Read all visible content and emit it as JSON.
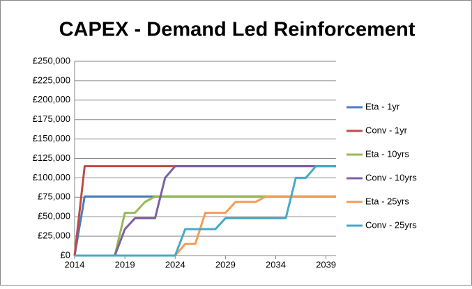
{
  "chart_data": {
    "type": "line",
    "title": "CAPEX - Demand Led Reinforcement",
    "x": [
      2014,
      2015,
      2016,
      2017,
      2018,
      2019,
      2020,
      2021,
      2022,
      2023,
      2024,
      2025,
      2026,
      2027,
      2028,
      2029,
      2030,
      2031,
      2032,
      2033,
      2034,
      2035,
      2036,
      2037,
      2038,
      2039,
      2040
    ],
    "xlim": [
      2014,
      2040
    ],
    "xticks": [
      2014,
      2019,
      2024,
      2029,
      2034,
      2039
    ],
    "ylim": [
      0,
      250000
    ],
    "yticks": [
      {
        "value": 0,
        "label": "£0"
      },
      {
        "value": 25000,
        "label": "£25,000"
      },
      {
        "value": 50000,
        "label": "£50,000"
      },
      {
        "value": 75000,
        "label": "£75,000"
      },
      {
        "value": 100000,
        "label": "£100,000"
      },
      {
        "value": 125000,
        "label": "£125,000"
      },
      {
        "value": 150000,
        "label": "£150,000"
      },
      {
        "value": 175000,
        "label": "£175,000"
      },
      {
        "value": 200000,
        "label": "£200,000"
      },
      {
        "value": 225000,
        "label": "£225,000"
      },
      {
        "value": 250000,
        "label": "£250,000"
      }
    ],
    "grid": true,
    "legend": "right",
    "series": [
      {
        "name": "Eta - 1yr",
        "color": "#4a7ebb",
        "values": [
          0,
          76000,
          76000,
          76000,
          76000,
          76000,
          76000,
          76000,
          76000,
          76000,
          76000,
          76000,
          76000,
          76000,
          76000,
          76000,
          76000,
          76000,
          76000,
          76000,
          76000,
          76000,
          76000,
          76000,
          76000,
          76000,
          76000
        ]
      },
      {
        "name": "Conv - 1yr",
        "color": "#be4b48",
        "values": [
          0,
          115000,
          115000,
          115000,
          115000,
          115000,
          115000,
          115000,
          115000,
          115000,
          115000,
          115000,
          115000,
          115000,
          115000,
          115000,
          115000,
          115000,
          115000,
          115000,
          115000,
          115000,
          115000,
          115000,
          115000,
          115000,
          115000
        ]
      },
      {
        "name": "Eta - 10yrs",
        "color": "#98b954",
        "values": [
          0,
          0,
          0,
          0,
          0,
          55000,
          55000,
          69000,
          76000,
          76000,
          76000,
          76000,
          76000,
          76000,
          76000,
          76000,
          76000,
          76000,
          76000,
          76000,
          76000,
          76000,
          76000,
          76000,
          76000,
          76000,
          76000
        ]
      },
      {
        "name": "Conv - 10yrs",
        "color": "#7d60a0",
        "values": [
          0,
          0,
          0,
          0,
          0,
          34000,
          48000,
          48000,
          48000,
          100000,
          115000,
          115000,
          115000,
          115000,
          115000,
          115000,
          115000,
          115000,
          115000,
          115000,
          115000,
          115000,
          115000,
          115000,
          115000,
          115000,
          115000
        ]
      },
      {
        "name": "Eta - 25yrs",
        "color": "#f59d56",
        "values": [
          0,
          0,
          0,
          0,
          0,
          0,
          0,
          0,
          0,
          0,
          0,
          15000,
          15000,
          55000,
          55000,
          55000,
          69000,
          69000,
          69000,
          76000,
          76000,
          76000,
          76000,
          76000,
          76000,
          76000,
          76000
        ]
      },
      {
        "name": "Conv - 25yrs",
        "color": "#46aac5",
        "values": [
          0,
          0,
          0,
          0,
          0,
          0,
          0,
          0,
          0,
          0,
          0,
          34000,
          34000,
          34000,
          34000,
          48000,
          48000,
          48000,
          48000,
          48000,
          48000,
          48000,
          100000,
          100000,
          115000,
          115000,
          115000
        ]
      }
    ]
  }
}
